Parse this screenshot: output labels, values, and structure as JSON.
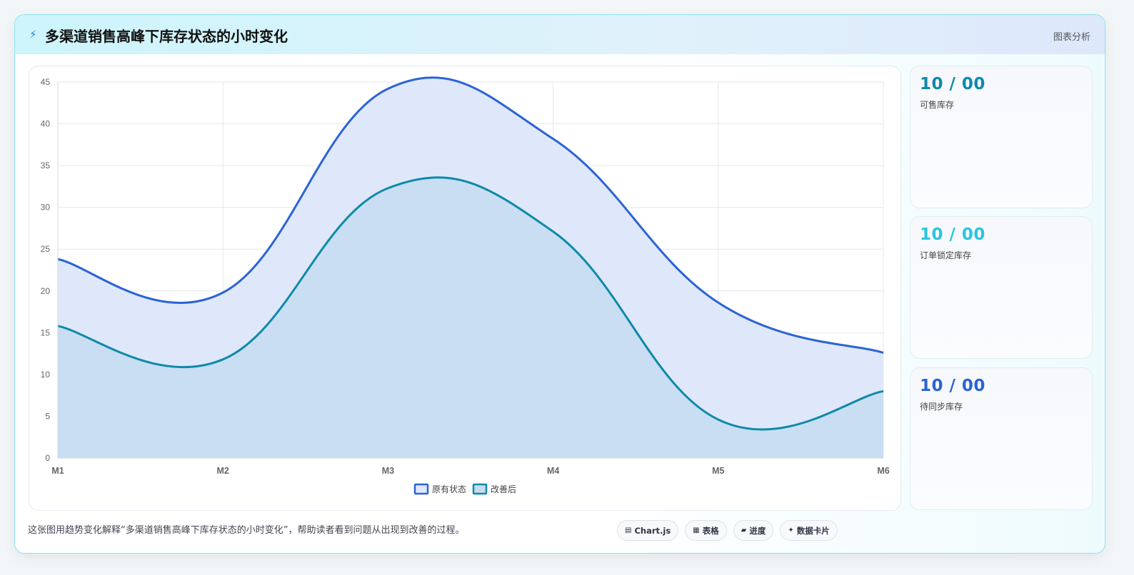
{
  "header": {
    "icon": "lightning-icon",
    "title": "多渠道销售高峰下库存状态的小时变化",
    "tag": "图表分析"
  },
  "colors": {
    "series_original": "#2c63d6",
    "series_improved": "#0e8aa8",
    "fill_original": "#dfe8fa",
    "fill_improved": "#c6dcf1",
    "stat_1": "#0e8aa8",
    "stat_2": "#29c5dd",
    "stat_3": "#2b63d3"
  },
  "stats": [
    {
      "value": "10 / 00",
      "label": "可售库存"
    },
    {
      "value": "10 / 00",
      "label": "订单锁定库存"
    },
    {
      "value": "10 / 00",
      "label": "待同步库存"
    }
  ],
  "footer": {
    "description": "这张图用趋势变化解释“多渠道销售高峰下库存状态的小时变化”，帮助读者看到问题从出现到改善的过程。",
    "chips": [
      {
        "icon": "chart-icon",
        "glyph": "▤",
        "label": "Chart.js"
      },
      {
        "icon": "table-icon",
        "glyph": "▦",
        "label": "表格"
      },
      {
        "icon": "progress-icon",
        "glyph": "▰",
        "label": "进度"
      },
      {
        "icon": "sparkle-icon",
        "glyph": "✦",
        "label": "数据卡片"
      }
    ]
  },
  "chart_data": {
    "type": "area",
    "categories": [
      "M1",
      "M2",
      "M3",
      "M4",
      "M5",
      "M6"
    ],
    "series": [
      {
        "name": "原有状态",
        "values": [
          23.8,
          19.8,
          44.2,
          38.2,
          18.6,
          12.6
        ]
      },
      {
        "name": "改善后",
        "values": [
          15.8,
          11.8,
          32.3,
          27.1,
          4.6,
          8.0
        ]
      }
    ],
    "ylim": [
      0,
      45
    ],
    "yticks": [
      0,
      5,
      10,
      15,
      20,
      25,
      30,
      35,
      40,
      45
    ],
    "grid": true,
    "legend": "bottom-center"
  }
}
